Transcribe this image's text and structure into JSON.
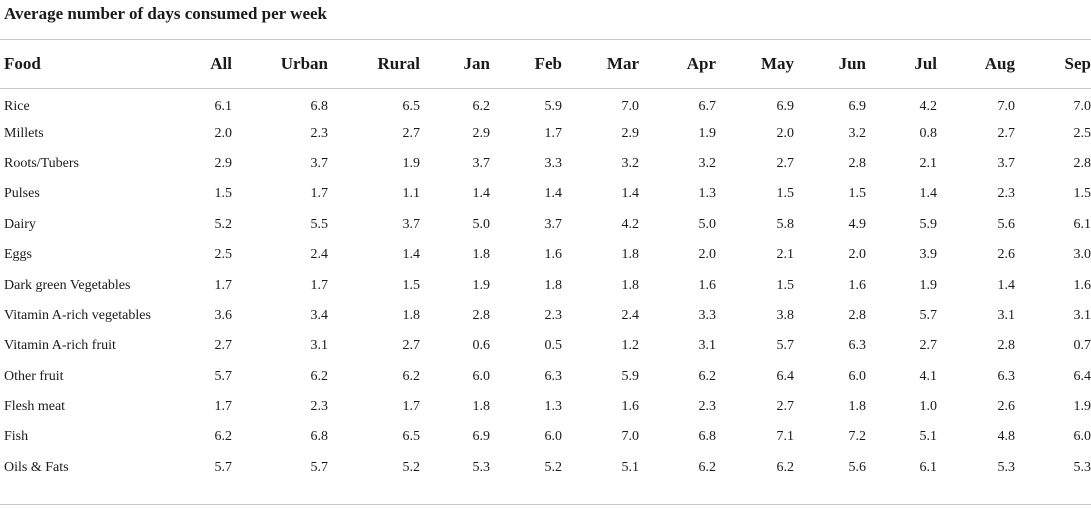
{
  "caption": "Average number of days consumed per week",
  "table": {
    "columns": [
      "Food",
      "All",
      "Urban",
      "Rural",
      "Jan",
      "Feb",
      "Mar",
      "Apr",
      "May",
      "Jun",
      "Jul",
      "Aug",
      "Sep"
    ],
    "rows": [
      [
        "Rice",
        "6.1",
        "6.8",
        "6.5",
        "6.2",
        "5.9",
        "7.0",
        "6.7",
        "6.9",
        "6.9",
        "4.2",
        "7.0",
        "7.0"
      ],
      [
        "Millets",
        "2.0",
        "2.3",
        "2.7",
        "2.9",
        "1.7",
        "2.9",
        "1.9",
        "2.0",
        "3.2",
        "0.8",
        "2.7",
        "2.5"
      ],
      [
        "Roots/Tubers",
        "2.9",
        "3.7",
        "1.9",
        "3.7",
        "3.3",
        "3.2",
        "3.2",
        "2.7",
        "2.8",
        "2.1",
        "3.7",
        "2.8"
      ],
      [
        "Pulses",
        "1.5",
        "1.7",
        "1.1",
        "1.4",
        "1.4",
        "1.4",
        "1.3",
        "1.5",
        "1.5",
        "1.4",
        "2.3",
        "1.5"
      ],
      [
        "Dairy",
        "5.2",
        "5.5",
        "3.7",
        "5.0",
        "3.7",
        "4.2",
        "5.0",
        "5.8",
        "4.9",
        "5.9",
        "5.6",
        "6.1"
      ],
      [
        "Eggs",
        "2.5",
        "2.4",
        "1.4",
        "1.8",
        "1.6",
        "1.8",
        "2.0",
        "2.1",
        "2.0",
        "3.9",
        "2.6",
        "3.0"
      ],
      [
        "Dark green Vegetables",
        "1.7",
        "1.7",
        "1.5",
        "1.9",
        "1.8",
        "1.8",
        "1.6",
        "1.5",
        "1.6",
        "1.9",
        "1.4",
        "1.6"
      ],
      [
        "Vitamin A-rich vegetables",
        "3.6",
        "3.4",
        "1.8",
        "2.8",
        "2.3",
        "2.4",
        "3.3",
        "3.8",
        "2.8",
        "5.7",
        "3.1",
        "3.1"
      ],
      [
        "Vitamin A-rich fruit",
        "2.7",
        "3.1",
        "2.7",
        "0.6",
        "0.5",
        "1.2",
        "3.1",
        "5.7",
        "6.3",
        "2.7",
        "2.8",
        "0.7"
      ],
      [
        "Other fruit",
        "5.7",
        "6.2",
        "6.2",
        "6.0",
        "6.3",
        "5.9",
        "6.2",
        "6.4",
        "6.0",
        "4.1",
        "6.3",
        "6.4"
      ],
      [
        "Flesh meat",
        "1.7",
        "2.3",
        "1.7",
        "1.8",
        "1.3",
        "1.6",
        "2.3",
        "2.7",
        "1.8",
        "1.0",
        "2.6",
        "1.9"
      ],
      [
        "Fish",
        "6.2",
        "6.8",
        "6.5",
        "6.9",
        "6.0",
        "7.0",
        "6.8",
        "7.1",
        "7.2",
        "5.1",
        "4.8",
        "6.0"
      ],
      [
        "Oils & Fats",
        "5.7",
        "5.7",
        "5.2",
        "5.3",
        "5.2",
        "5.1",
        "6.2",
        "6.2",
        "5.6",
        "6.1",
        "5.3",
        "5.3"
      ]
    ]
  }
}
